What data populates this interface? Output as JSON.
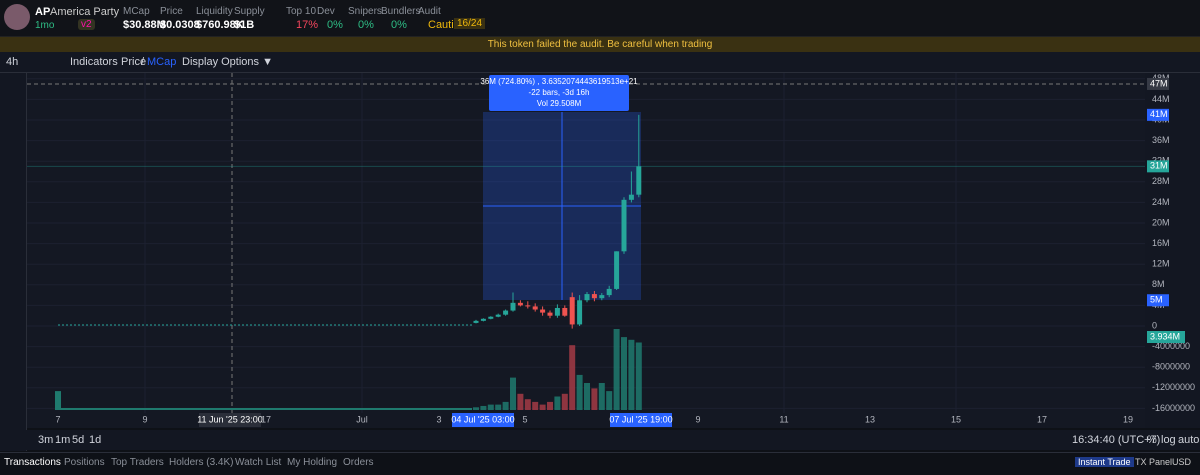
{
  "header": {
    "symbol": "AP",
    "name": "America Party",
    "age": "1mo",
    "version": "v2",
    "stats": [
      {
        "label": "MCap",
        "value": "$30.88M"
      },
      {
        "label": "Price",
        "value": "$0.0308"
      },
      {
        "label": "Liquidity",
        "value": "$760.98K"
      },
      {
        "label": "Supply",
        "value": "$1B"
      }
    ],
    "audit": [
      {
        "label": "Top 10",
        "value": "17%"
      },
      {
        "label": "Dev",
        "value": "0%"
      },
      {
        "label": "Snipers",
        "value": "0%"
      },
      {
        "label": "Bundlers",
        "value": "0%"
      },
      {
        "label": "Audit",
        "value": "Caution",
        "score": "16/24"
      }
    ]
  },
  "alert": "This token failed the audit. Be careful when trading",
  "toolbar": {
    "interval": "4h",
    "indicators": "Indicators",
    "price": "Price",
    "slash": "/",
    "mcap": "MCap",
    "display": "Display Options ▼"
  },
  "chart": {
    "price_ticks": [
      {
        "value": 48,
        "label": "48M"
      },
      {
        "value": 44,
        "label": "44M"
      },
      {
        "value": 40,
        "label": "40M"
      },
      {
        "value": 36,
        "label": "36M"
      },
      {
        "value": 32,
        "label": "32M"
      },
      {
        "value": 28,
        "label": "28M"
      },
      {
        "value": 24,
        "label": "24M"
      },
      {
        "value": 20,
        "label": "20M"
      },
      {
        "value": 16,
        "label": "16M"
      },
      {
        "value": 12,
        "label": "12M"
      },
      {
        "value": 8,
        "label": "8M"
      },
      {
        "value": 4,
        "label": "4M"
      },
      0,
      {
        "value": -4,
        "label": "-4000000"
      },
      {
        "value": -8,
        "label": "-8000000"
      },
      {
        "value": -12,
        "label": "-12000000"
      },
      {
        "value": -16,
        "label": "-16000000"
      }
    ],
    "price_markers": [
      {
        "value": 47,
        "label": "47M"
      },
      {
        "value": 41,
        "label": "41M"
      },
      {
        "value": 31,
        "label": "31M"
      },
      {
        "value": 5,
        "label": "5M"
      }
    ],
    "current_label": "3.934M",
    "time_labels": [
      "7",
      "9",
      "11 Jun '25  23:00",
      "17",
      "Jul",
      "3",
      "04 Jul '25  03:00",
      "5",
      "07 Jul '25  19:00",
      "9",
      "11",
      "13",
      "15",
      "17",
      "19"
    ],
    "early_price": 0.2,
    "early_volume": 7,
    "candles": [
      [
        0.6,
        1.2,
        0.5,
        1.0
      ],
      [
        1.0,
        1.5,
        0.9,
        1.4
      ],
      [
        1.4,
        1.9,
        1.3,
        1.8
      ],
      [
        1.8,
        2.4,
        1.7,
        2.2
      ],
      [
        2.2,
        3.2,
        2.0,
        3.0
      ],
      [
        3.0,
        6.5,
        2.8,
        4.5
      ],
      [
        4.5,
        5.0,
        3.8,
        4.0
      ],
      [
        4.0,
        4.8,
        3.4,
        3.8
      ],
      [
        3.8,
        4.4,
        2.8,
        3.2
      ],
      [
        3.2,
        3.8,
        2.0,
        2.6
      ],
      [
        2.6,
        3.0,
        1.5,
        2.0
      ],
      [
        2.0,
        4.2,
        1.6,
        3.5
      ],
      [
        3.5,
        4.0,
        1.8,
        2.0
      ],
      [
        5.6,
        6.5,
        -0.5,
        0.3
      ],
      [
        0.3,
        6.0,
        0.0,
        5.0
      ],
      [
        5.0,
        6.6,
        4.6,
        6.2
      ],
      [
        6.2,
        6.8,
        4.8,
        5.4
      ],
      [
        5.4,
        6.4,
        5.0,
        6.0
      ],
      [
        6.0,
        7.8,
        5.6,
        7.2
      ],
      [
        7.2,
        14.5,
        7.0,
        14.5
      ],
      [
        14.5,
        25.0,
        14.0,
        24.5
      ],
      [
        24.5,
        30.0,
        24.0,
        25.5
      ],
      [
        25.5,
        41.0,
        25.0,
        31.0
      ]
    ],
    "volumes": [
      1,
      1.5,
      2,
      2,
      3,
      12,
      6,
      4,
      3,
      2,
      3,
      5,
      6,
      24,
      13,
      10,
      8,
      10,
      7,
      30,
      27,
      26,
      25
    ],
    "tooltip": {
      "line1": "36M (724.80%) , 3.6352074443619513e+21",
      "line2": "-22 bars, -3d 16h",
      "line3": "Vol 29.508M"
    }
  },
  "bottom": {
    "ranges": [
      "3m",
      "1m",
      "5d",
      "1d"
    ],
    "clock": "16:34:40 (UTC+7)",
    "pct": "%",
    "log": "log",
    "auto": "auto"
  },
  "tabs": [
    "Transactions",
    "Positions",
    "Top Traders",
    "Holders (3.4K)",
    "Watch List",
    "My Holding",
    "Orders"
  ],
  "right_tabs": [
    "Instant Trade",
    "TX Panel",
    "USD"
  ]
}
